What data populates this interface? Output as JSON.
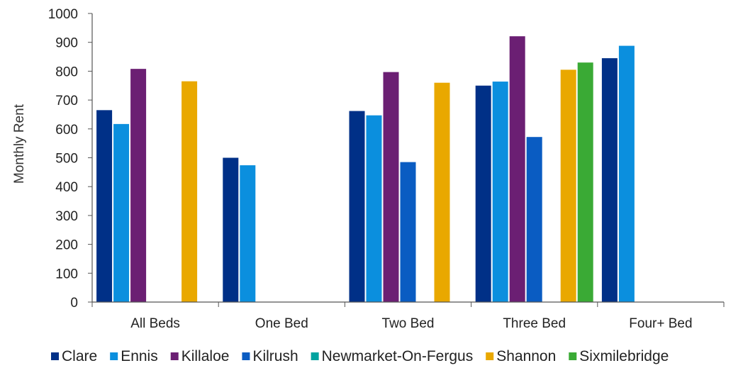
{
  "chart_data": {
    "type": "bar",
    "title": "",
    "xlabel": "",
    "ylabel": "Monthly Rent",
    "ylim": [
      0,
      1000
    ],
    "yticks": [
      "0",
      "100",
      "200",
      "300",
      "400",
      "500",
      "600",
      "700",
      "800",
      "900",
      "1000"
    ],
    "grid": false,
    "legend_position": "bottom",
    "categories": [
      "All Beds",
      "One Bed",
      "Two Bed",
      "Three Bed",
      "Four+ Bed"
    ],
    "series": [
      {
        "name": "Clare",
        "color": "#003087",
        "values": [
          665,
          500,
          662,
          750,
          845
        ]
      },
      {
        "name": "Ennis",
        "color": "#0b8fde",
        "values": [
          617,
          474,
          647,
          764,
          888
        ]
      },
      {
        "name": "Killaloe",
        "color": "#6b1f73",
        "values": [
          808,
          null,
          797,
          921,
          null
        ]
      },
      {
        "name": "Kilrush",
        "color": "#0a5cc2",
        "values": [
          null,
          null,
          485,
          572,
          null
        ]
      },
      {
        "name": "Newmarket-On-Fergus",
        "color": "#00a3a0",
        "values": [
          null,
          null,
          null,
          null,
          null
        ]
      },
      {
        "name": "Shannon",
        "color": "#e9a800",
        "values": [
          765,
          null,
          760,
          805,
          null
        ]
      },
      {
        "name": "Sixmilebridge",
        "color": "#3aaa35",
        "values": [
          null,
          null,
          null,
          830,
          null
        ]
      }
    ]
  }
}
